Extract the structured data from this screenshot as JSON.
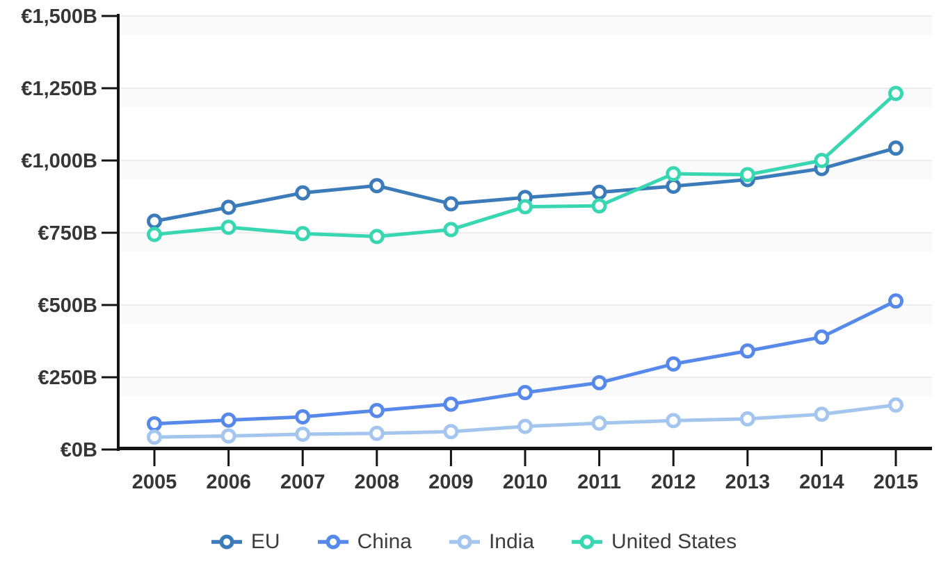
{
  "chart_data": {
    "type": "line",
    "title": "",
    "currency_prefix": "€",
    "unit_suffix": "B",
    "years": [
      2005,
      2006,
      2007,
      2008,
      2009,
      2010,
      2011,
      2012,
      2013,
      2014,
      2015
    ],
    "series": [
      {
        "name": "EU",
        "color": "#3b7bb9",
        "values": [
          790,
          838,
          888,
          913,
          850,
          872,
          890,
          911,
          934,
          972,
          1043
        ]
      },
      {
        "name": "China",
        "color": "#5789eb",
        "values": [
          89,
          102,
          113,
          135,
          157,
          197,
          231,
          296,
          341,
          389,
          514
        ]
      },
      {
        "name": "India",
        "color": "#a4c6ee",
        "values": [
          43,
          47,
          53,
          56,
          62,
          80,
          91,
          100,
          106,
          122,
          154
        ]
      },
      {
        "name": "United States",
        "color": "#38d7b2",
        "values": [
          744,
          769,
          747,
          737,
          761,
          840,
          843,
          954,
          951,
          1000,
          1232
        ]
      }
    ],
    "ylim": [
      0,
      1500
    ],
    "y_tick_values": [
      0,
      250,
      500,
      750,
      1000,
      1250,
      1500
    ],
    "y_tick_labels": [
      "€0B",
      "€250B",
      "€500B",
      "€750B",
      "€1,000B",
      "€1,250B",
      "€1,500B"
    ],
    "x_tick_labels": [
      "2005",
      "2006",
      "2007",
      "2008",
      "2009",
      "2010",
      "2011",
      "2012",
      "2013",
      "2014",
      "2015"
    ],
    "grid": "horizontal",
    "legend_position": "bottom",
    "axis_color": "#141414",
    "gridline_color": "#ededed",
    "grid_band_color": "#fafafa",
    "tick_label_color": "#363636",
    "legend_text_color": "#3c3c3c"
  }
}
